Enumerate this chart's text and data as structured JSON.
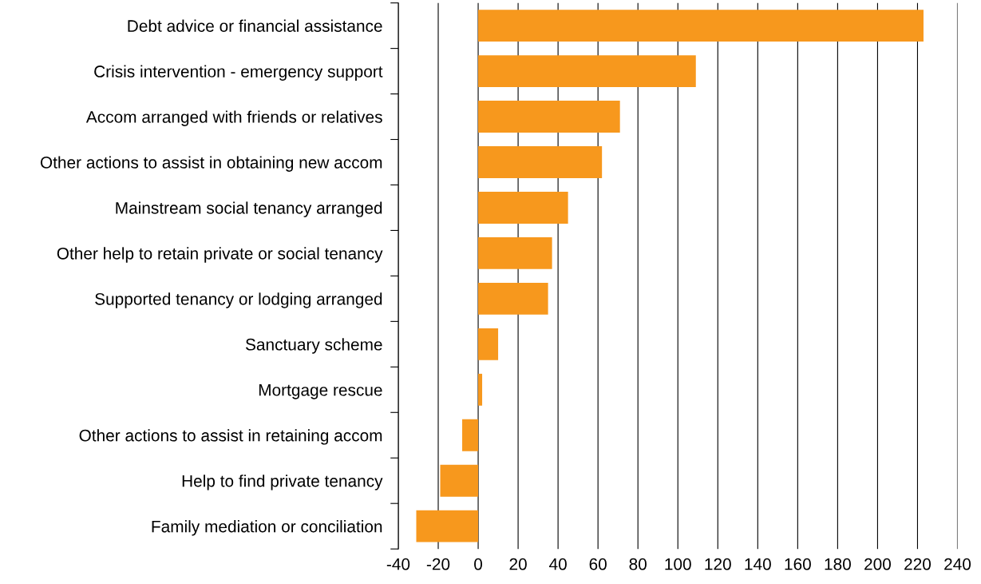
{
  "chart_data": {
    "type": "bar",
    "orientation": "horizontal",
    "categories": [
      "Debt advice or financial assistance",
      "Crisis intervention - emergency support",
      "Accom arranged with friends or relatives",
      "Other actions to assist in obtaining new accom",
      "Mainstream social tenancy arranged",
      "Other help to retain private or social tenancy",
      "Supported tenancy or lodging arranged",
      "Sanctuary scheme",
      "Mortgage rescue",
      "Other actions to assist in retaining accom",
      "Help to find private tenancy",
      "Family mediation or conciliation"
    ],
    "values": [
      223,
      109,
      71,
      62,
      45,
      37,
      35,
      10,
      2,
      -8,
      -19,
      -31
    ],
    "color": "#f7981d",
    "xlim": [
      -40,
      240
    ],
    "xticks": [
      -40,
      -20,
      0,
      20,
      40,
      60,
      80,
      100,
      120,
      140,
      160,
      180,
      200,
      220,
      240
    ],
    "grid": "x"
  }
}
